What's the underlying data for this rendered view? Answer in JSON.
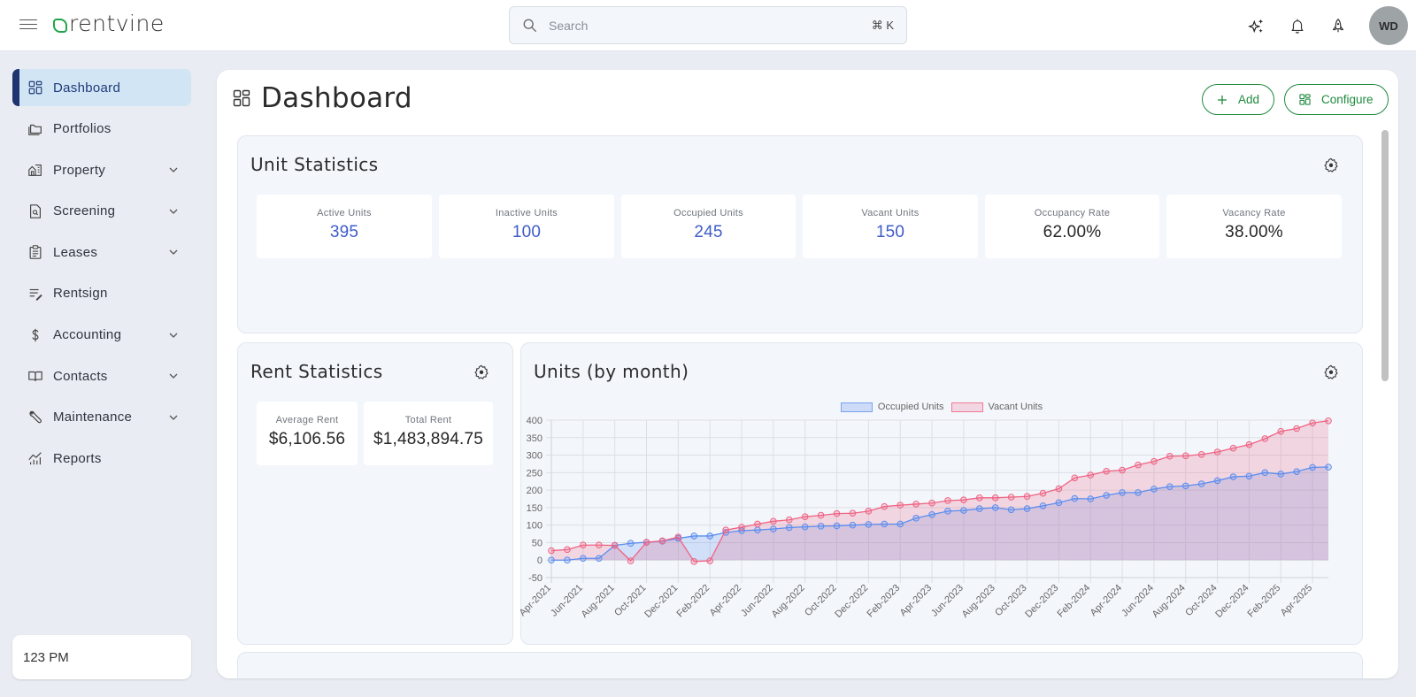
{
  "topbar": {
    "brand": "rentvine",
    "search": {
      "placeholder": "Search",
      "shortcut": "⌘ K"
    },
    "icons": [
      "sparkle-icon",
      "bell-icon",
      "rocket-icon"
    ],
    "avatar_initials": "WD"
  },
  "sidebar": {
    "items": [
      {
        "label": "Dashboard",
        "icon": "dashboard-grid-icon",
        "active": true,
        "expandable": false
      },
      {
        "label": "Portfolios",
        "icon": "folder-icon",
        "active": false,
        "expandable": false
      },
      {
        "label": "Property",
        "icon": "buildings-icon",
        "active": false,
        "expandable": true
      },
      {
        "label": "Screening",
        "icon": "document-search-icon",
        "active": false,
        "expandable": true
      },
      {
        "label": "Leases",
        "icon": "clipboard-icon",
        "active": false,
        "expandable": true
      },
      {
        "label": "Rentsign",
        "icon": "sign-pen-icon",
        "active": false,
        "expandable": false
      },
      {
        "label": "Accounting",
        "icon": "dollar-icon",
        "active": false,
        "expandable": true
      },
      {
        "label": "Contacts",
        "icon": "book-icon",
        "active": false,
        "expandable": true
      },
      {
        "label": "Maintenance",
        "icon": "wrench-icon",
        "active": false,
        "expandable": true
      },
      {
        "label": "Reports",
        "icon": "chart-icon",
        "active": false,
        "expandable": false
      }
    ],
    "clock": "123 PM"
  },
  "main": {
    "title": "Dashboard",
    "buttons": {
      "add": "Add",
      "configure": "Configure"
    },
    "unit_statistics": {
      "title": "Unit Statistics",
      "stats": [
        {
          "label": "Active Units",
          "value": "395",
          "style": "blue"
        },
        {
          "label": "Inactive Units",
          "value": "100",
          "style": "blue"
        },
        {
          "label": "Occupied Units",
          "value": "245",
          "style": "blue"
        },
        {
          "label": "Vacant Units",
          "value": "150",
          "style": "blue"
        },
        {
          "label": "Occupancy Rate",
          "value": "62.00%",
          "style": "dark"
        },
        {
          "label": "Vacancy Rate",
          "value": "38.00%",
          "style": "dark"
        }
      ]
    },
    "rent_statistics": {
      "title": "Rent Statistics",
      "stats": [
        {
          "label": "Average Rent",
          "value": "$6,106.56"
        },
        {
          "label": "Total Rent",
          "value": "$1,483,894.75"
        }
      ]
    },
    "units_by_month": {
      "title": "Units (by month)"
    }
  },
  "colors": {
    "brand_green": "#21a44a",
    "accent_blue": "#3f5cc9",
    "occupied_line": "#5b8def",
    "vacant_line": "#f06383"
  },
  "chart_data": {
    "type": "area",
    "title": "Units (by month)",
    "xlabel": "",
    "ylabel": "",
    "ylim": [
      -50,
      400
    ],
    "yticks": [
      -50,
      0,
      50,
      100,
      150,
      200,
      250,
      300,
      350,
      400
    ],
    "grid": true,
    "legend": "top-center",
    "x": [
      "Apr-2021",
      "May-2021",
      "Jun-2021",
      "Jul-2021",
      "Aug-2021",
      "Sep-2021",
      "Oct-2021",
      "Nov-2021",
      "Dec-2021",
      "Jan-2022",
      "Feb-2022",
      "Mar-2022",
      "Apr-2022",
      "May-2022",
      "Jun-2022",
      "Jul-2022",
      "Aug-2022",
      "Sep-2022",
      "Oct-2022",
      "Nov-2022",
      "Dec-2022",
      "Jan-2023",
      "Feb-2023",
      "Mar-2023",
      "Apr-2023",
      "May-2023",
      "Jun-2023",
      "Jul-2023",
      "Aug-2023",
      "Sep-2023",
      "Oct-2023",
      "Nov-2023",
      "Dec-2023",
      "Jan-2024",
      "Feb-2024",
      "Mar-2024",
      "Apr-2024",
      "May-2024",
      "Jun-2024",
      "Jul-2024",
      "Aug-2024",
      "Sep-2024",
      "Oct-2024",
      "Nov-2024",
      "Dec-2024",
      "Jan-2025",
      "Feb-2025",
      "Mar-2025",
      "Apr-2025",
      "May-2025"
    ],
    "xtick_labels": [
      "Apr-2021",
      "Jun-2021",
      "Aug-2021",
      "Oct-2021",
      "Dec-2021",
      "Feb-2022",
      "Apr-2022",
      "Jun-2022",
      "Aug-2022",
      "Oct-2022",
      "Dec-2022",
      "Feb-2023",
      "Apr-2023",
      "Jun-2023",
      "Aug-2023",
      "Oct-2023",
      "Dec-2023",
      "Feb-2024",
      "Apr-2024",
      "Jun-2024",
      "Aug-2024",
      "Oct-2024",
      "Dec-2024",
      "Feb-2025",
      "Apr-2025"
    ],
    "series": [
      {
        "name": "Occupied Units",
        "values": [
          0,
          0,
          5,
          5,
          42,
          48,
          51,
          54,
          62,
          69,
          69,
          79,
          84,
          86,
          89,
          93,
          95,
          97,
          98,
          100,
          102,
          103,
          103,
          120,
          130,
          140,
          142,
          147,
          150,
          144,
          147,
          155,
          164,
          176,
          175,
          185,
          193,
          193,
          203,
          210,
          212,
          218,
          227,
          238,
          240,
          250,
          246,
          253,
          265,
          266
        ]
      },
      {
        "name": "Vacant Units",
        "values": [
          27,
          30,
          43,
          43,
          42,
          -2,
          51,
          55,
          66,
          -4,
          -2,
          86,
          94,
          103,
          111,
          115,
          124,
          128,
          133,
          134,
          140,
          153,
          157,
          160,
          163,
          170,
          172,
          178,
          178,
          180,
          182,
          191,
          204,
          235,
          243,
          254,
          257,
          272,
          282,
          297,
          298,
          302,
          309,
          320,
          330,
          347,
          368,
          376,
          392,
          398
        ]
      }
    ]
  }
}
